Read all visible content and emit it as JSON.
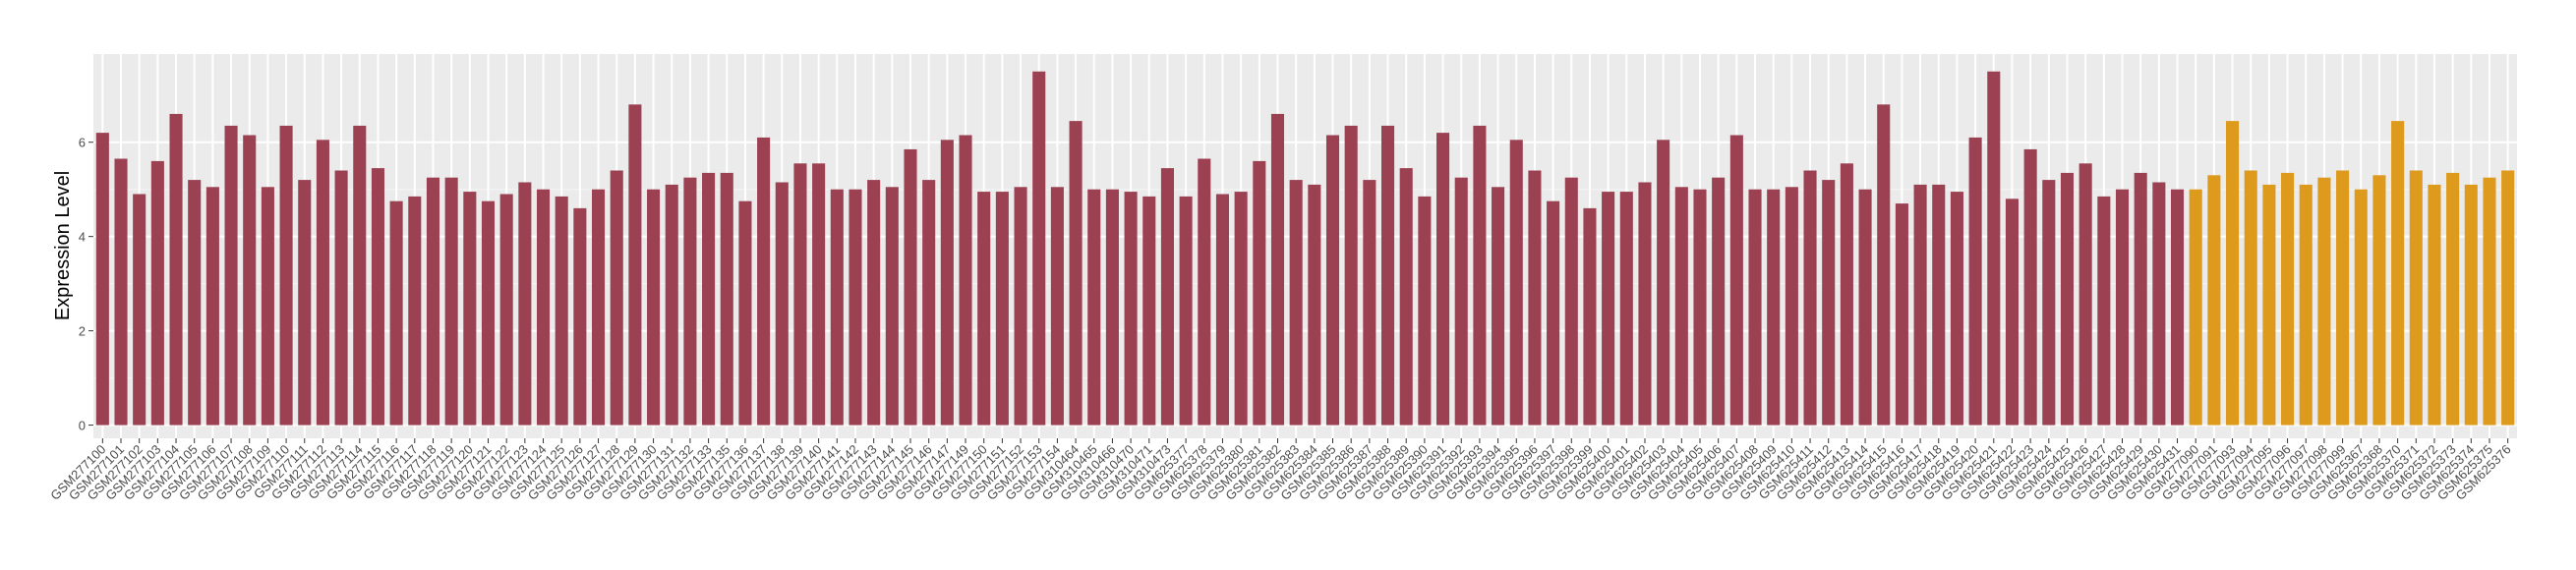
{
  "chart_data": {
    "type": "bar",
    "ylabel": "Expression Level",
    "ylim": [
      -0.28,
      7.87
    ],
    "yticks": [
      0,
      2,
      4,
      6
    ],
    "grid": true,
    "series": [
      {
        "color": "#9b4152",
        "categories": [
          "GSM277100",
          "GSM277101",
          "GSM277102",
          "GSM277103",
          "GSM277104",
          "GSM277105",
          "GSM277106",
          "GSM277107",
          "GSM277108",
          "GSM277109",
          "GSM277110",
          "GSM277111",
          "GSM277112",
          "GSM277113",
          "GSM277114",
          "GSM277115",
          "GSM277116",
          "GSM277117",
          "GSM277118",
          "GSM277119",
          "GSM277120",
          "GSM277121",
          "GSM277122",
          "GSM277123",
          "GSM277124",
          "GSM277125",
          "GSM277126",
          "GSM277127",
          "GSM277128",
          "GSM277129",
          "GSM277130",
          "GSM277131",
          "GSM277132",
          "GSM277133",
          "GSM277135",
          "GSM277136",
          "GSM277137",
          "GSM277138",
          "GSM277139",
          "GSM277140",
          "GSM277141",
          "GSM277142",
          "GSM277143",
          "GSM277144",
          "GSM277145",
          "GSM277146",
          "GSM277147",
          "GSM277149",
          "GSM277150",
          "GSM277151",
          "GSM277152",
          "GSM277153",
          "GSM277154",
          "GSM310464",
          "GSM310465",
          "GSM310466",
          "GSM310470",
          "GSM310471",
          "GSM310473",
          "GSM625377",
          "GSM625378",
          "GSM625379",
          "GSM625380",
          "GSM625381",
          "GSM625382",
          "GSM625383",
          "GSM625384",
          "GSM625385",
          "GSM625386",
          "GSM625387",
          "GSM625388",
          "GSM625389",
          "GSM625390",
          "GSM625391",
          "GSM625392",
          "GSM625393",
          "GSM625394",
          "GSM625395",
          "GSM625396",
          "GSM625397",
          "GSM625398",
          "GSM625399",
          "GSM625400",
          "GSM625401",
          "GSM625402",
          "GSM625403",
          "GSM625404",
          "GSM625405",
          "GSM625406",
          "GSM625407",
          "GSM625408",
          "GSM625409",
          "GSM625410",
          "GSM625411",
          "GSM625412",
          "GSM625413",
          "GSM625414",
          "GSM625415",
          "GSM625416",
          "GSM625417",
          "GSM625418",
          "GSM625419",
          "GSM625420",
          "GSM625421",
          "GSM625422",
          "GSM625423",
          "GSM625424",
          "GSM625425",
          "GSM625426",
          "GSM625427",
          "GSM625428",
          "GSM625429",
          "GSM625430",
          "GSM625431"
        ],
        "values": [
          6.2,
          5.65,
          4.9,
          5.6,
          6.6,
          5.2,
          5.05,
          6.35,
          6.15,
          5.05,
          6.35,
          5.2,
          6.05,
          5.4,
          6.35,
          5.45,
          4.75,
          4.85,
          5.25,
          5.25,
          4.95,
          4.75,
          4.9,
          5.15,
          5.0,
          4.85,
          4.6,
          5.0,
          5.4,
          6.8,
          5.0,
          5.1,
          5.25,
          5.35,
          5.35,
          4.75,
          6.1,
          5.15,
          5.55,
          5.55,
          5.0,
          5.0,
          5.2,
          5.05,
          5.85,
          5.2,
          6.05,
          6.15,
          4.95,
          4.95,
          5.05,
          7.5,
          5.05,
          6.45,
          5.0,
          5.0,
          4.95,
          4.85,
          5.45,
          4.85,
          5.65,
          4.9,
          4.95,
          5.6,
          6.6,
          5.2,
          5.1,
          6.15,
          6.35,
          5.2,
          6.35,
          5.45,
          4.85,
          6.2,
          5.25,
          6.35,
          5.05,
          6.05,
          5.4,
          4.75,
          5.25,
          4.6,
          4.95,
          4.95,
          5.15,
          6.05,
          5.05,
          5.0,
          5.25,
          6.15,
          5.0,
          5.0,
          5.05,
          5.4,
          5.2,
          5.55,
          5.0,
          6.8,
          4.7,
          5.1,
          5.1,
          4.95,
          6.1,
          7.5,
          4.8,
          5.85,
          5.2,
          5.35,
          5.55,
          4.85,
          5.0,
          5.35,
          5.15,
          5.0
        ]
      },
      {
        "color": "#dd9a1c",
        "categories": [
          "GSM277090",
          "GSM277091",
          "GSM277093",
          "GSM277094",
          "GSM277095",
          "GSM277096",
          "GSM277097",
          "GSM277098",
          "GSM277099",
          "GSM625367",
          "GSM625368",
          "GSM625370",
          "GSM625371",
          "GSM625372",
          "GSM625373",
          "GSM625374",
          "GSM625375",
          "GSM625376"
        ],
        "values": [
          5.0,
          5.3,
          6.45,
          5.4,
          5.1,
          5.35,
          5.1,
          5.25,
          5.4,
          5.0,
          5.3,
          6.45,
          5.4,
          5.1,
          5.35,
          5.1,
          5.25,
          5.4
        ]
      }
    ]
  }
}
